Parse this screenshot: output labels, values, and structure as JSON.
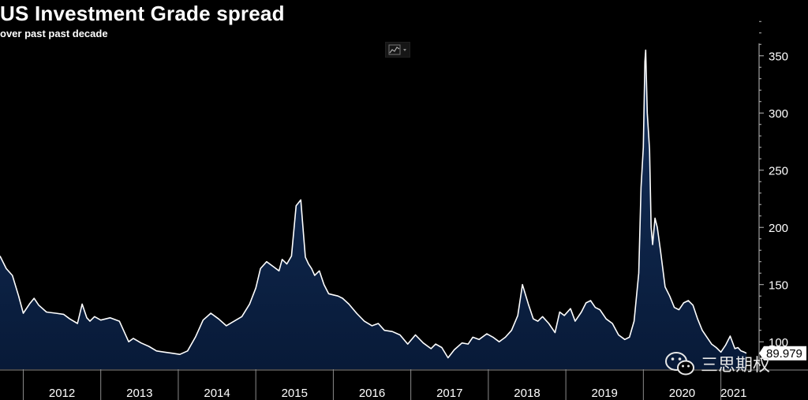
{
  "chart_data": {
    "type": "area",
    "title": "US Investment Grade spread",
    "subtitle": "over past past decade",
    "xlabel": "",
    "ylabel": "",
    "x_ticks": [
      "2012",
      "2013",
      "2014",
      "2015",
      "2016",
      "2017",
      "2018",
      "2019",
      "2020",
      "2021"
    ],
    "y_ticks": [
      100,
      150,
      200,
      250,
      300,
      350
    ],
    "xlim": [
      2011.7,
      2021.33
    ],
    "ylim": [
      76,
      385
    ],
    "last_value_label": "89.979",
    "series": [
      {
        "x": [
          2011.7,
          2011.78,
          2011.86,
          2011.94,
          2012.0,
          2012.08,
          2012.14,
          2012.2,
          2012.3,
          2012.42,
          2012.52,
          2012.6,
          2012.7,
          2012.76,
          2012.82,
          2012.86,
          2012.92,
          2013.0,
          2013.12,
          2013.24,
          2013.36,
          2013.42,
          2013.52,
          2013.62,
          2013.72,
          2013.82,
          2013.92,
          2014.02,
          2014.12,
          2014.22,
          2014.32,
          2014.42,
          2014.52,
          2014.62,
          2014.72,
          2014.82,
          2014.92,
          2015.0,
          2015.06,
          2015.14,
          2015.22,
          2015.3,
          2015.34,
          2015.4,
          2015.46,
          2015.52,
          2015.58,
          2015.62,
          2015.64,
          2015.68,
          2015.72,
          2015.76,
          2015.82,
          2015.88,
          2015.94,
          2016.0,
          2016.06,
          2016.12,
          2016.2,
          2016.3,
          2016.4,
          2016.5,
          2016.58,
          2016.66,
          2016.76,
          2016.86,
          2016.96,
          2017.06,
          2017.16,
          2017.26,
          2017.32,
          2017.4,
          2017.48,
          2017.56,
          2017.66,
          2017.74,
          2017.8,
          2017.88,
          2017.98,
          2018.06,
          2018.14,
          2018.22,
          2018.3,
          2018.38,
          2018.44,
          2018.52,
          2018.58,
          2018.64,
          2018.7,
          2018.78,
          2018.86,
          2018.92,
          2018.98,
          2019.06,
          2019.12,
          2019.2,
          2019.26,
          2019.32,
          2019.38,
          2019.44,
          2019.52,
          2019.6,
          2019.68,
          2019.76,
          2019.82,
          2019.88,
          2019.94,
          2019.97,
          2020.0,
          2020.02,
          2020.03,
          2020.05,
          2020.08,
          2020.1,
          2020.12,
          2020.15,
          2020.18,
          2020.22,
          2020.28,
          2020.34,
          2020.4,
          2020.46,
          2020.52,
          2020.58,
          2020.64,
          2020.7,
          2020.76,
          2020.82,
          2020.88,
          2020.94,
          2021.0,
          2021.06,
          2021.12,
          2021.18,
          2021.22,
          2021.26,
          2021.3,
          2021.33
        ],
        "y": [
          175,
          164,
          158,
          140,
          125,
          133,
          138,
          132,
          126,
          125,
          124,
          120,
          116,
          133,
          121,
          118,
          122,
          119,
          121,
          118,
          100,
          103,
          99,
          96,
          92,
          91,
          90,
          89,
          92,
          104,
          119,
          125,
          120,
          114,
          118,
          122,
          133,
          147,
          164,
          170,
          166,
          162,
          172,
          168,
          175,
          219,
          224,
          190,
          174,
          168,
          164,
          158,
          162,
          150,
          142,
          141,
          140,
          138,
          133,
          125,
          118,
          114,
          116,
          110,
          109,
          106,
          98,
          106,
          99,
          94,
          98,
          95,
          86,
          93,
          99,
          98,
          104,
          102,
          107,
          104,
          100,
          104,
          110,
          123,
          150,
          132,
          120,
          118,
          122,
          116,
          108,
          126,
          123,
          129,
          118,
          126,
          134,
          136,
          130,
          128,
          120,
          116,
          106,
          102,
          104,
          118,
          160,
          235,
          270,
          345,
          355,
          300,
          268,
          200,
          185,
          208,
          200,
          180,
          148,
          140,
          130,
          128,
          134,
          136,
          132,
          120,
          110,
          104,
          98,
          95,
          91,
          97,
          105,
          94,
          95,
          92,
          91,
          89.979
        ]
      }
    ]
  }
}
